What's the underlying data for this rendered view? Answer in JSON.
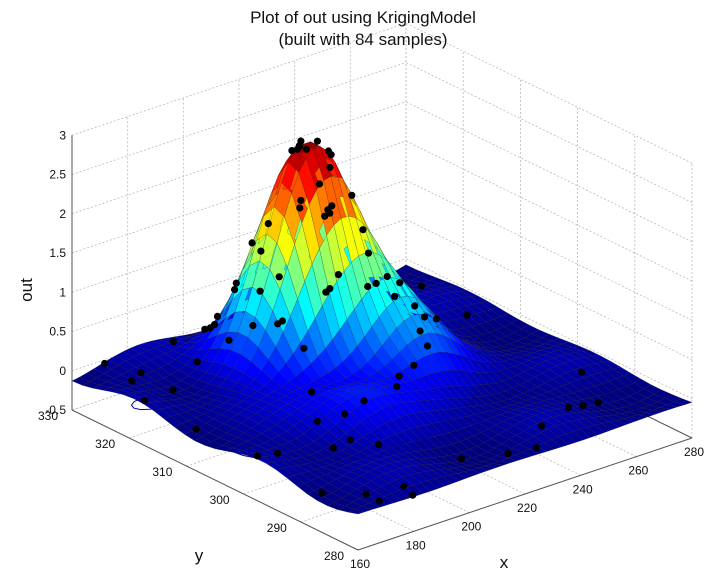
{
  "chart_data": {
    "type": "surface",
    "title": "Plot of out using KrigingModel",
    "subtitle": "(built with 84 samples)",
    "xlabel": "x",
    "ylabel": "y",
    "zlabel": "out",
    "xlim": [
      160,
      280
    ],
    "ylim": [
      280,
      330
    ],
    "zlim": [
      -0.5,
      3
    ],
    "x_ticks": [
      "160",
      "180",
      "200",
      "220",
      "240",
      "260",
      "280"
    ],
    "y_ticks": [
      "280",
      "290",
      "300",
      "310",
      "320",
      "330"
    ],
    "z_ticks": [
      "-0.5",
      "0",
      "0.5",
      "1",
      "1.5",
      "2",
      "2.5",
      "3"
    ],
    "colormap": "jet",
    "grid": "on",
    "sample_count": 84,
    "peak": {
      "x": 218,
      "y": 317,
      "value": 2.6
    },
    "contours": "projected on floor (z = -0.5)"
  }
}
